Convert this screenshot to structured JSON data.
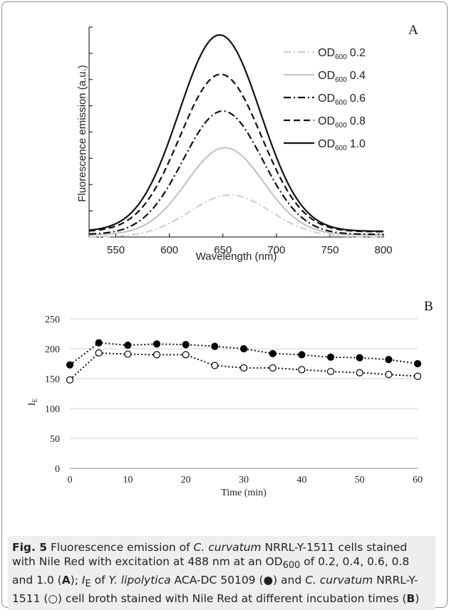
{
  "chart_data": [
    {
      "panel_label": "A",
      "type": "line",
      "xlabel": "Wavelength (nm)",
      "ylabel": "Fluorescence emission (a.u.)",
      "xlim": [
        525,
        800
      ],
      "ylim": [
        0,
        8
      ],
      "xticks": [
        "550",
        "600",
        "650",
        "700",
        "750",
        "800"
      ],
      "y_tick_labels_shown": false,
      "legend_position": "top-right",
      "series": [
        {
          "name": "0.2",
          "peak_x": 657,
          "peak_y": 1.6,
          "baseline": 0.0,
          "width": 38,
          "color": "#cfcfcf",
          "dash": "dashdot"
        },
        {
          "name": "0.4",
          "peak_x": 652,
          "peak_y": 3.4,
          "baseline": 0.08,
          "width": 36,
          "color": "#c4c4c4",
          "dash": "solid"
        },
        {
          "name": "0.6",
          "peak_x": 650,
          "peak_y": 4.8,
          "baseline": 0.1,
          "width": 37,
          "color": "#111111",
          "dash": "dashdot"
        },
        {
          "name": "0.8",
          "peak_x": 648,
          "peak_y": 6.2,
          "baseline": 0.2,
          "width": 38,
          "color": "#111111",
          "dash": "dash"
        },
        {
          "name": "1.0",
          "peak_x": 647,
          "peak_y": 7.7,
          "baseline": 0.22,
          "width": 38,
          "color": "#111111",
          "dash": "solid"
        }
      ],
      "legend_prefix": "OD",
      "legend_sub": "600"
    },
    {
      "panel_label": "B",
      "type": "line",
      "xlabel": "Time (min)",
      "ylabel": "I",
      "ylabel_sub": "E",
      "xlim": [
        0,
        60
      ],
      "ylim": [
        0,
        250
      ],
      "xticks": [
        0,
        10,
        20,
        30,
        40,
        50,
        60
      ],
      "yticks": [
        0,
        50,
        100,
        150,
        200,
        250
      ],
      "x": [
        0,
        5,
        10,
        15,
        20,
        25,
        30,
        35,
        40,
        45,
        50,
        55,
        60
      ],
      "series": [
        {
          "marker": "filled",
          "values": [
            173,
            210,
            206,
            208,
            207,
            204,
            200,
            192,
            190,
            186,
            185,
            182,
            175
          ]
        },
        {
          "marker": "open",
          "values": [
            148,
            193,
            191,
            190,
            190,
            172,
            168,
            168,
            165,
            162,
            160,
            157,
            154
          ]
        }
      ]
    }
  ],
  "caption": {
    "fig_label": "Fig. 5",
    "text_1": "  Fluorescence emission of ",
    "organism_1": "C. curvatum",
    "text_2": " NRRL-Y-1511 cells stained with Nile Red with excitation at 488 nm at an OD",
    "sub_1": "600",
    "text_3": " of 0.2, 0.4, 0.6, 0.8 and 1.0 (",
    "bold_A": "A",
    "text_4": "); ",
    "ie_I": "I",
    "ie_sub": "E",
    "text_5": " of ",
    "organism_2": "Y. lipolytica",
    "text_6": " ACA-DC 50109 (●) and ",
    "organism_3": "C. curvatum",
    "text_7": " NRRL-Y-1511 (○) cell broth stained with Nile Red at different incubation times (",
    "bold_B": "B",
    "text_8": ")"
  }
}
